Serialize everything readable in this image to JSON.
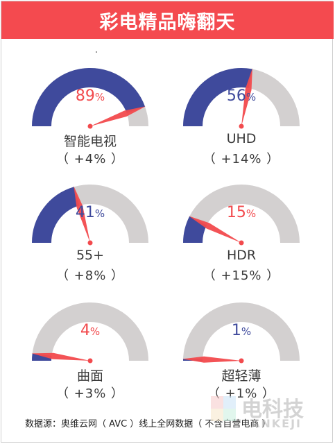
{
  "header": {
    "title": "彩电精品嗨翻天"
  },
  "colors": {
    "header": "#f44a4f",
    "share": "#3f4a9c",
    "rest": "#d3d0d0",
    "needle": "#f24a4d",
    "accent_red": "#f24a4d",
    "accent_blue": "#3f4a9c"
  },
  "chart_data": {
    "type": "gauge",
    "max": 100,
    "items": [
      {
        "name": "智能电视",
        "value": 89,
        "value_label": "89",
        "change": "（ +4% ）",
        "pct_color": "red"
      },
      {
        "name": "UHD",
        "value": 56,
        "value_label": "56",
        "change": "（ +14% ）",
        "pct_color": "blue"
      },
      {
        "name": "55+",
        "value": 41,
        "value_label": "41",
        "change": "（ +8% ）",
        "pct_color": "blue"
      },
      {
        "name": "HDR",
        "value": 15,
        "value_label": "15",
        "change": "（ +15% ）",
        "pct_color": "red"
      },
      {
        "name": "曲面",
        "value": 4,
        "value_label": "4",
        "change": "（ +3% ）",
        "pct_color": "red"
      },
      {
        "name": "超轻薄",
        "value": 1,
        "value_label": "1",
        "change": "（ +1% ）",
        "pct_color": "blue"
      }
    ]
  },
  "footer": {
    "source": "数据源：奥维云网（ AVC ）线上全网数据（ 不含自营电商 ）"
  },
  "watermark": {
    "text": "电科技",
    "sub_text": "ANKEJI"
  }
}
